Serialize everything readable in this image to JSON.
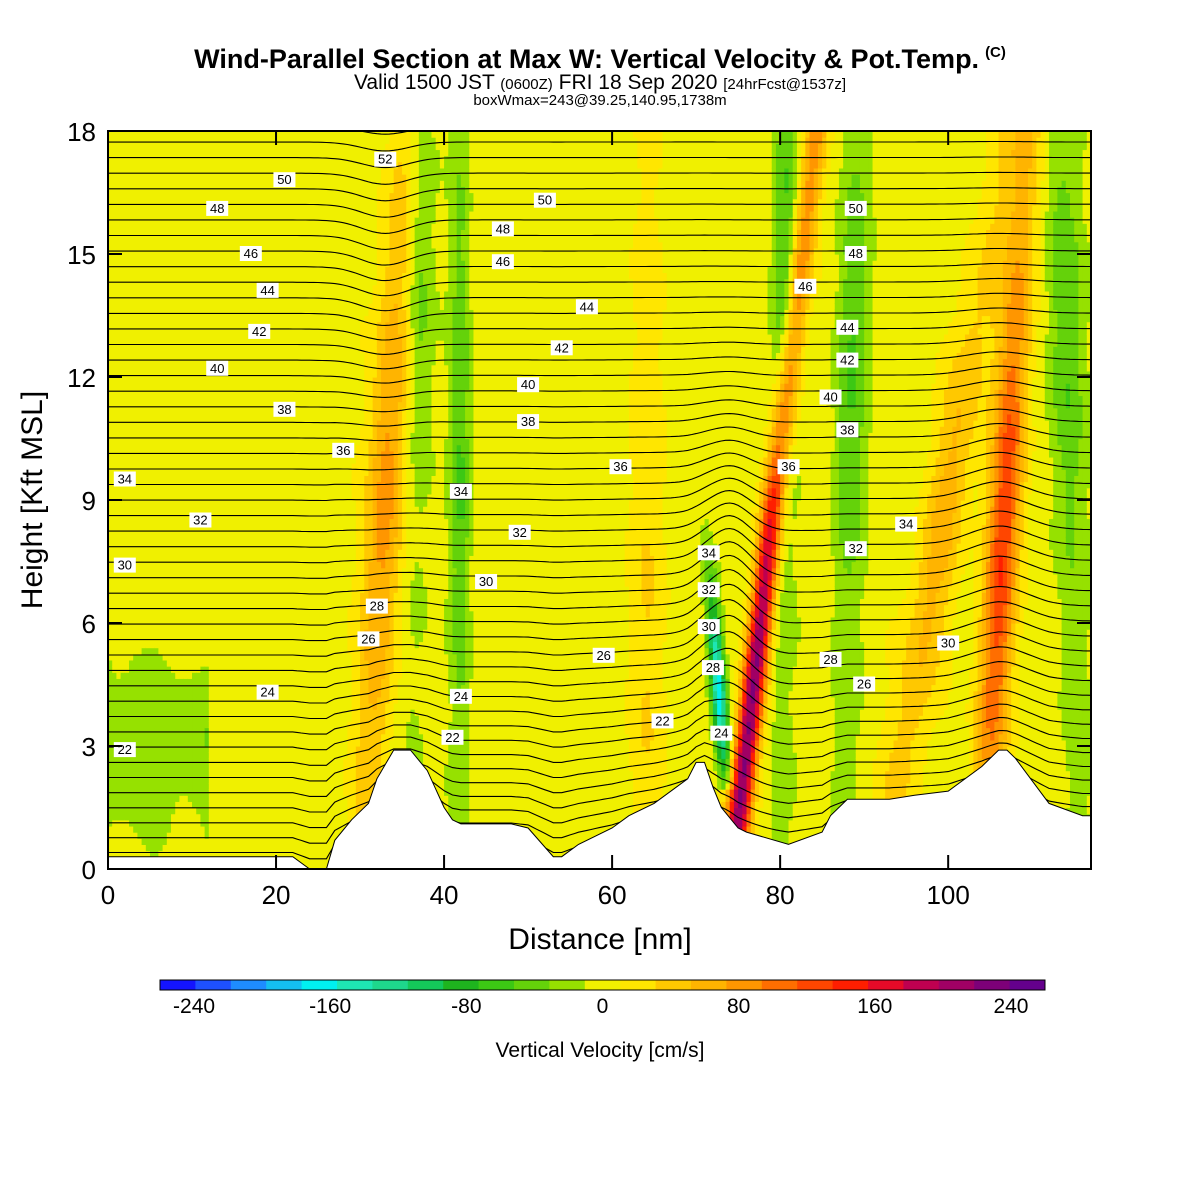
{
  "title": "Wind-Parallel Section at Max W: Vertical Velocity & Pot.Temp.",
  "copyright_mark": "(C)",
  "subtitle_main": "Valid 1500 JST",
  "subtitle_z": "(0600Z)",
  "subtitle_date": "FRI 18 Sep 2020",
  "subtitle_fcst": "[24hrFcst@1537z]",
  "box_info": "boxWmax=243@39.25,140.95,1738m",
  "chart_data": {
    "type": "heatmap",
    "xlabel": "Distance [nm]",
    "ylabel": "Height [Kft MSL]",
    "xlim": [
      0,
      117
    ],
    "ylim": [
      0,
      18
    ],
    "x_ticks": [
      "0",
      "20",
      "40",
      "60",
      "80",
      "100"
    ],
    "y_ticks": [
      "0",
      "3",
      "6",
      "9",
      "12",
      "15",
      "18"
    ],
    "colorbar_label": "Vertical Velocity [cm/s]",
    "colorbar_ticks": [
      "-240",
      "-160",
      "-80",
      "0",
      "80",
      "160",
      "240"
    ],
    "colorbar_range": [
      -260,
      260
    ],
    "colorbar_colors": [
      "#1414ff",
      "#1e50ff",
      "#1e8cff",
      "#14bef0",
      "#00f0f0",
      "#1ee6b4",
      "#1ed78c",
      "#14c85a",
      "#1eb41e",
      "#3cc814",
      "#64d20a",
      "#96e100",
      "#f0f000",
      "#ffe600",
      "#ffc800",
      "#ffb400",
      "#ff9600",
      "#ff6e00",
      "#ff4600",
      "#ff1e00",
      "#e60a28",
      "#be0050",
      "#a00064",
      "#7d0078",
      "#64008c"
    ],
    "terrain": [
      [
        0,
        0.3
      ],
      [
        22,
        0.3
      ],
      [
        24,
        0
      ],
      [
        26,
        0
      ],
      [
        27,
        0.7
      ],
      [
        29,
        1.2
      ],
      [
        31,
        1.6
      ],
      [
        32,
        2.2
      ],
      [
        34,
        2.9
      ],
      [
        36,
        2.9
      ],
      [
        38,
        2.4
      ],
      [
        40,
        1.5
      ],
      [
        41,
        1.2
      ],
      [
        42,
        1.1
      ],
      [
        48,
        1.1
      ],
      [
        50,
        1.0
      ],
      [
        53,
        0.3
      ],
      [
        54,
        0.3
      ],
      [
        56,
        0.6
      ],
      [
        60,
        1.0
      ],
      [
        62,
        1.3
      ],
      [
        65,
        1.6
      ],
      [
        69,
        2.2
      ],
      [
        70,
        2.6
      ],
      [
        71,
        2.6
      ],
      [
        72,
        2.0
      ],
      [
        73,
        1.5
      ],
      [
        75,
        1.0
      ],
      [
        76,
        0.9
      ],
      [
        81,
        0.6
      ],
      [
        85,
        0.9
      ],
      [
        86,
        1.3
      ],
      [
        88,
        1.7
      ],
      [
        93,
        1.7
      ],
      [
        96,
        1.8
      ],
      [
        100,
        1.9
      ],
      [
        104,
        2.5
      ],
      [
        106,
        2.9
      ],
      [
        107,
        2.9
      ],
      [
        108,
        2.7
      ],
      [
        112,
        1.6
      ],
      [
        116,
        1.3
      ],
      [
        117,
        1.3
      ]
    ],
    "theta_labels": [
      {
        "x": 2,
        "y": 2.9,
        "text": "22"
      },
      {
        "x": 19,
        "y": 4.3,
        "text": "24"
      },
      {
        "x": 31,
        "y": 5.6,
        "text": "26"
      },
      {
        "x": 32,
        "y": 6.4,
        "text": "28"
      },
      {
        "x": 2,
        "y": 7.4,
        "text": "30"
      },
      {
        "x": 11,
        "y": 8.5,
        "text": "32"
      },
      {
        "x": 2,
        "y": 9.5,
        "text": "34"
      },
      {
        "x": 28,
        "y": 10.2,
        "text": "36"
      },
      {
        "x": 21,
        "y": 11.2,
        "text": "38"
      },
      {
        "x": 13,
        "y": 12.2,
        "text": "40"
      },
      {
        "x": 18,
        "y": 13.1,
        "text": "42"
      },
      {
        "x": 19,
        "y": 14.1,
        "text": "44"
      },
      {
        "x": 17,
        "y": 15.0,
        "text": "46"
      },
      {
        "x": 13,
        "y": 16.1,
        "text": "48"
      },
      {
        "x": 21,
        "y": 16.8,
        "text": "50"
      },
      {
        "x": 33,
        "y": 17.3,
        "text": "52"
      },
      {
        "x": 41,
        "y": 3.2,
        "text": "22"
      },
      {
        "x": 42,
        "y": 4.2,
        "text": "24"
      },
      {
        "x": 45,
        "y": 7.0,
        "text": "30"
      },
      {
        "x": 42,
        "y": 9.2,
        "text": "34"
      },
      {
        "x": 49,
        "y": 8.2,
        "text": "32"
      },
      {
        "x": 50,
        "y": 10.9,
        "text": "38"
      },
      {
        "x": 50,
        "y": 11.8,
        "text": "40"
      },
      {
        "x": 54,
        "y": 12.7,
        "text": "42"
      },
      {
        "x": 57,
        "y": 13.7,
        "text": "44"
      },
      {
        "x": 47,
        "y": 14.8,
        "text": "46"
      },
      {
        "x": 47,
        "y": 15.6,
        "text": "48"
      },
      {
        "x": 52,
        "y": 16.3,
        "text": "50"
      },
      {
        "x": 59,
        "y": 5.2,
        "text": "26"
      },
      {
        "x": 61,
        "y": 9.8,
        "text": "36"
      },
      {
        "x": 66,
        "y": 3.6,
        "text": "22"
      },
      {
        "x": 73,
        "y": 3.3,
        "text": "24"
      },
      {
        "x": 72,
        "y": 4.9,
        "text": "28"
      },
      {
        "x": 71.5,
        "y": 5.9,
        "text": "30"
      },
      {
        "x": 71.5,
        "y": 6.8,
        "text": "32"
      },
      {
        "x": 71.5,
        "y": 7.7,
        "text": "34"
      },
      {
        "x": 81,
        "y": 9.8,
        "text": "36"
      },
      {
        "x": 86,
        "y": 5.1,
        "text": "28"
      },
      {
        "x": 90,
        "y": 4.5,
        "text": "26"
      },
      {
        "x": 89,
        "y": 7.8,
        "text": "32"
      },
      {
        "x": 95,
        "y": 8.4,
        "text": "34"
      },
      {
        "x": 100,
        "y": 5.5,
        "text": "30"
      },
      {
        "x": 88,
        "y": 10.7,
        "text": "38"
      },
      {
        "x": 86,
        "y": 11.5,
        "text": "40"
      },
      {
        "x": 88,
        "y": 12.4,
        "text": "42"
      },
      {
        "x": 88,
        "y": 13.2,
        "text": "44"
      },
      {
        "x": 83,
        "y": 14.2,
        "text": "46"
      },
      {
        "x": 89,
        "y": 15.0,
        "text": "48"
      },
      {
        "x": 89,
        "y": 16.1,
        "text": "50"
      }
    ],
    "max_w_cms": 243
  }
}
